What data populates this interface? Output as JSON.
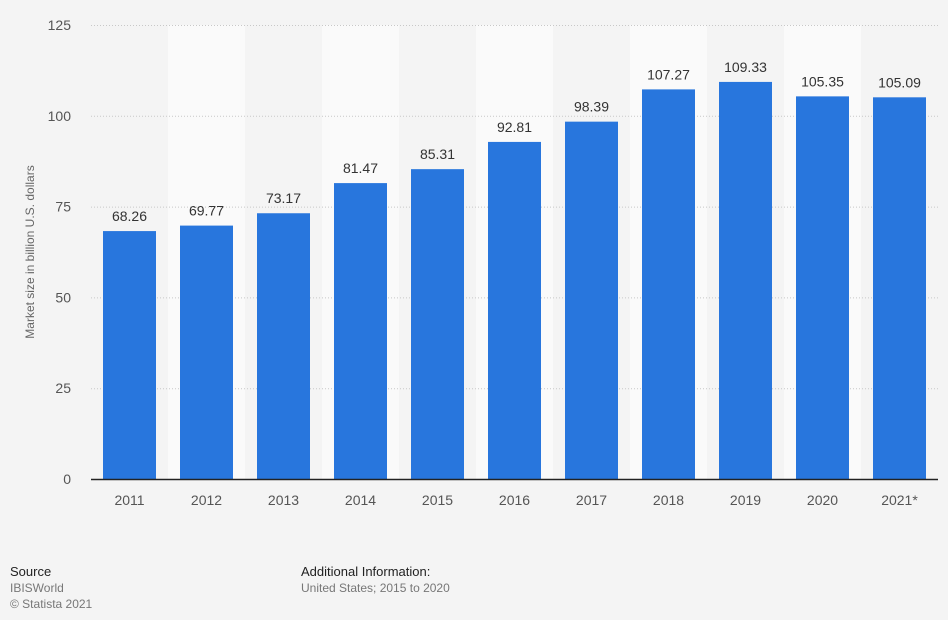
{
  "chart_data": {
    "type": "bar",
    "categories": [
      "2011",
      "2012",
      "2013",
      "2014",
      "2015",
      "2016",
      "2017",
      "2018",
      "2019",
      "2020",
      "2021*"
    ],
    "values": [
      68.26,
      69.77,
      73.17,
      81.47,
      85.31,
      92.81,
      98.39,
      107.27,
      109.33,
      105.35,
      105.09
    ],
    "data_labels": [
      "68.26",
      "69.77",
      "73.17",
      "81.47",
      "85.31",
      "92.81",
      "98.39",
      "107.27",
      "109.33",
      "105.35",
      "105.09"
    ],
    "title": "",
    "xlabel": "",
    "ylabel": "Market size in billion U.S. dollars",
    "ylim": [
      0,
      125
    ],
    "yticks": [
      0,
      25,
      50,
      75,
      100,
      125
    ],
    "grid": true,
    "bar_color": "#2876dd"
  },
  "footer": {
    "source_heading": "Source",
    "source": "IBISWorld",
    "copyright": "© Statista 2021",
    "info_heading": "Additional Information:",
    "info": "United States; 2015 to 2020"
  }
}
